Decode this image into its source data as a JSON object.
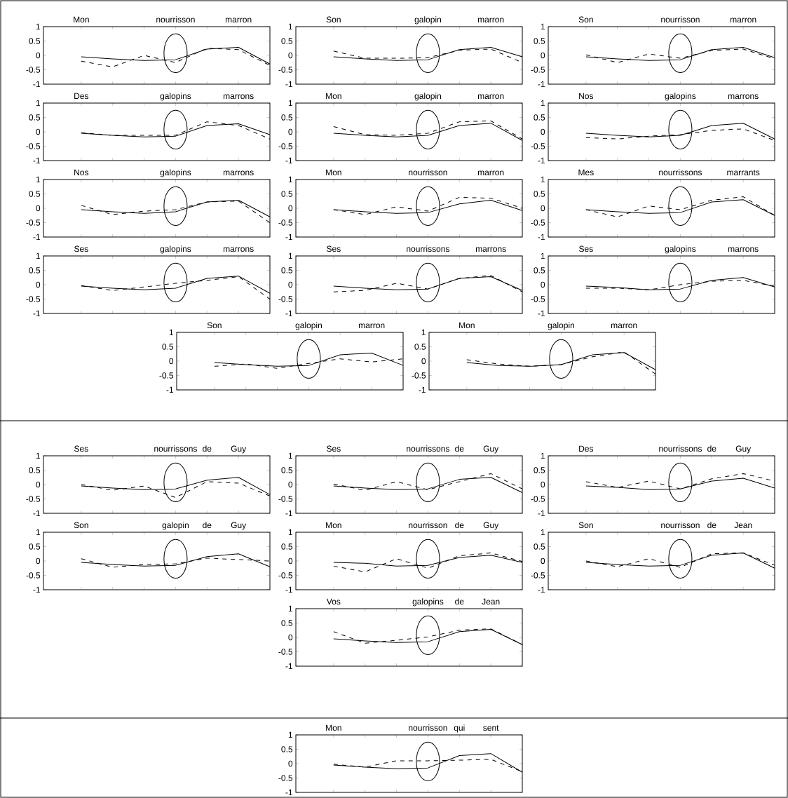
{
  "chart_data": [
    {
      "type": "line",
      "categories": [
        "Mon",
        null,
        null,
        "nourrisson",
        null,
        "marron",
        null
      ],
      "ylim": [
        -1,
        1
      ],
      "yticks": [
        -1,
        -0.5,
        0,
        0.5,
        1
      ],
      "series": [
        {
          "color": "#000000",
          "line_style": "solid",
          "values": [
            -0.05,
            -0.12,
            -0.18,
            -0.15,
            0.22,
            0.28,
            -0.3
          ]
        },
        {
          "color": "#000000",
          "line_style": "dashed",
          "values": [
            -0.2,
            -0.4,
            0,
            -0.25,
            0.25,
            0.2,
            -0.35
          ]
        }
      ]
    },
    {
      "type": "line",
      "categories": [
        "Son",
        null,
        null,
        "galopin",
        null,
        "marron",
        null
      ],
      "ylim": [
        -1,
        1
      ],
      "yticks": [
        -1,
        -0.5,
        0,
        0.5,
        1
      ],
      "series": [
        {
          "color": "#000000",
          "line_style": "solid",
          "values": [
            -0.05,
            -0.12,
            -0.18,
            -0.15,
            0.2,
            0.28,
            -0.05
          ]
        },
        {
          "color": "#000000",
          "line_style": "dashed",
          "values": [
            0.15,
            -0.1,
            -0.1,
            -0.08,
            0.18,
            0.22,
            -0.25
          ]
        }
      ]
    },
    {
      "type": "line",
      "categories": [
        "Son",
        null,
        null,
        "nourrisson",
        null,
        "marron",
        null
      ],
      "ylim": [
        -1,
        1
      ],
      "yticks": [
        -1,
        -0.5,
        0,
        0.5,
        1
      ],
      "series": [
        {
          "color": "#000000",
          "line_style": "solid",
          "values": [
            -0.05,
            -0.12,
            -0.18,
            -0.15,
            0.2,
            0.28,
            -0.08
          ]
        },
        {
          "color": "#000000",
          "line_style": "dashed",
          "values": [
            0.02,
            -0.25,
            0.05,
            -0.1,
            0.17,
            0.22,
            -0.12
          ]
        }
      ]
    },
    {
      "type": "line",
      "categories": [
        "Des",
        null,
        null,
        "galopins",
        null,
        "marrons",
        null
      ],
      "ylim": [
        -1,
        1
      ],
      "yticks": [
        -1,
        -0.5,
        0,
        0.5,
        1
      ],
      "series": [
        {
          "color": "#000000",
          "line_style": "solid",
          "values": [
            -0.05,
            -0.12,
            -0.18,
            -0.15,
            0.22,
            0.28,
            -0.1
          ]
        },
        {
          "color": "#000000",
          "line_style": "dashed",
          "values": [
            -0.03,
            -0.12,
            -0.12,
            -0.12,
            0.35,
            0.22,
            -0.25
          ]
        }
      ]
    },
    {
      "type": "line",
      "categories": [
        "Mon",
        null,
        null,
        "galopin",
        null,
        "marron",
        null
      ],
      "ylim": [
        -1,
        1
      ],
      "yticks": [
        -1,
        -0.5,
        0,
        0.5,
        1
      ],
      "series": [
        {
          "color": "#000000",
          "line_style": "solid",
          "values": [
            -0.05,
            -0.12,
            -0.18,
            -0.12,
            0.22,
            0.3,
            -0.3
          ]
        },
        {
          "color": "#000000",
          "line_style": "dashed",
          "values": [
            0.18,
            -0.1,
            -0.12,
            -0.05,
            0.35,
            0.38,
            -0.25
          ]
        }
      ]
    },
    {
      "type": "line",
      "categories": [
        "Nos",
        null,
        null,
        "galopins",
        null,
        "marrons",
        null
      ],
      "ylim": [
        -1,
        1
      ],
      "yticks": [
        -1,
        -0.5,
        0,
        0.5,
        1
      ],
      "series": [
        {
          "color": "#000000",
          "line_style": "solid",
          "values": [
            -0.05,
            -0.12,
            -0.18,
            -0.12,
            0.22,
            0.3,
            -0.25
          ]
        },
        {
          "color": "#000000",
          "line_style": "dashed",
          "values": [
            -0.2,
            -0.25,
            -0.15,
            -0.1,
            0.05,
            0.1,
            -0.3
          ]
        }
      ]
    },
    {
      "type": "line",
      "categories": [
        "Nos",
        null,
        null,
        "galopins",
        null,
        "marrons",
        null
      ],
      "ylim": [
        -1,
        1
      ],
      "yticks": [
        -1,
        -0.5,
        0,
        0.5,
        1
      ],
      "series": [
        {
          "color": "#000000",
          "line_style": "solid",
          "values": [
            -0.05,
            -0.12,
            -0.18,
            -0.12,
            0.22,
            0.28,
            -0.3
          ]
        },
        {
          "color": "#000000",
          "line_style": "dashed",
          "values": [
            0.1,
            -0.22,
            -0.1,
            -0.05,
            0.22,
            0.25,
            -0.5
          ]
        }
      ]
    },
    {
      "type": "line",
      "categories": [
        "Mon",
        null,
        null,
        "nourrisson",
        null,
        "marron",
        null
      ],
      "ylim": [
        -1,
        1
      ],
      "yticks": [
        -1,
        -0.5,
        0,
        0.5,
        1
      ],
      "series": [
        {
          "color": "#000000",
          "line_style": "solid",
          "values": [
            -0.05,
            -0.12,
            -0.18,
            -0.15,
            0.15,
            0.28,
            -0.08
          ]
        },
        {
          "color": "#000000",
          "line_style": "dashed",
          "values": [
            -0.05,
            -0.22,
            0.05,
            -0.1,
            0.38,
            0.35,
            0
          ]
        }
      ]
    },
    {
      "type": "line",
      "categories": [
        "Mes",
        null,
        null,
        "nourrissons",
        null,
        "marrants",
        null
      ],
      "ylim": [
        -1,
        1
      ],
      "yticks": [
        -1,
        -0.5,
        0,
        0.5,
        1
      ],
      "series": [
        {
          "color": "#000000",
          "line_style": "solid",
          "values": [
            -0.05,
            -0.12,
            -0.18,
            -0.15,
            0.22,
            0.3,
            -0.25
          ]
        },
        {
          "color": "#000000",
          "line_style": "dashed",
          "values": [
            -0.05,
            -0.3,
            0.08,
            -0.05,
            0.28,
            0.4,
            -0.25
          ]
        }
      ]
    },
    {
      "type": "line",
      "categories": [
        "Ses",
        null,
        null,
        "galopins",
        null,
        "marrons",
        null
      ],
      "ylim": [
        -1,
        1
      ],
      "yticks": [
        -1,
        -0.5,
        0,
        0.5,
        1
      ],
      "series": [
        {
          "color": "#000000",
          "line_style": "solid",
          "values": [
            -0.05,
            -0.12,
            -0.18,
            -0.12,
            0.22,
            0.3,
            -0.3
          ]
        },
        {
          "color": "#000000",
          "line_style": "dashed",
          "values": [
            -0.03,
            -0.2,
            -0.08,
            0.05,
            0.15,
            0.28,
            -0.5
          ]
        }
      ]
    },
    {
      "type": "line",
      "categories": [
        "Ses",
        null,
        null,
        "nourrissons",
        null,
        "marrons",
        null
      ],
      "ylim": [
        -1,
        1
      ],
      "yticks": [
        -1,
        -0.5,
        0,
        0.5,
        1
      ],
      "series": [
        {
          "color": "#000000",
          "line_style": "solid",
          "values": [
            -0.05,
            -0.12,
            -0.18,
            -0.15,
            0.22,
            0.28,
            -0.2
          ]
        },
        {
          "color": "#000000",
          "line_style": "dashed",
          "values": [
            -0.25,
            -0.2,
            0.05,
            -0.15,
            0.22,
            0.32,
            -0.25
          ]
        }
      ]
    },
    {
      "type": "line",
      "categories": [
        "Ses",
        null,
        null,
        "galopins",
        null,
        "marrons",
        null
      ],
      "ylim": [
        -1,
        1
      ],
      "yticks": [
        -1,
        -0.5,
        0,
        0.5,
        1
      ],
      "series": [
        {
          "color": "#000000",
          "line_style": "solid",
          "values": [
            -0.05,
            -0.1,
            -0.18,
            -0.15,
            0.15,
            0.25,
            -0.08
          ]
        },
        {
          "color": "#000000",
          "line_style": "dashed",
          "values": [
            -0.12,
            -0.12,
            -0.18,
            0,
            0.12,
            0.15,
            -0.05
          ]
        }
      ]
    },
    {
      "type": "line",
      "categories": [
        "Son",
        null,
        null,
        "galopin",
        null,
        "marron",
        null
      ],
      "ylim": [
        -1,
        1
      ],
      "yticks": [
        -1,
        -0.5,
        0,
        0.5,
        1
      ],
      "series": [
        {
          "color": "#000000",
          "line_style": "solid",
          "values": [
            -0.05,
            -0.12,
            -0.18,
            -0.15,
            0.22,
            0.28,
            -0.15
          ]
        },
        {
          "color": "#000000",
          "line_style": "dashed",
          "values": [
            -0.18,
            -0.1,
            -0.25,
            -0.08,
            0.08,
            -0.03,
            0.08
          ]
        }
      ]
    },
    {
      "type": "line",
      "categories": [
        "Mon",
        null,
        null,
        "galopin",
        null,
        "marron",
        null
      ],
      "ylim": [
        -1,
        1
      ],
      "yticks": [
        -1,
        -0.5,
        0,
        0.5,
        1
      ],
      "series": [
        {
          "color": "#000000",
          "line_style": "solid",
          "values": [
            -0.05,
            -0.15,
            -0.18,
            -0.12,
            0.22,
            0.3,
            -0.3
          ]
        },
        {
          "color": "#000000",
          "line_style": "dashed",
          "values": [
            0.05,
            -0.1,
            -0.18,
            -0.12,
            0.15,
            0.32,
            -0.45
          ]
        }
      ]
    },
    {
      "type": "line",
      "categories": [
        "Ses",
        null,
        null,
        "nourrissons",
        "de",
        "Guy",
        null
      ],
      "ylim": [
        -1,
        1
      ],
      "yticks": [
        -1,
        -0.5,
        0,
        0.5,
        1
      ],
      "series": [
        {
          "color": "#000000",
          "line_style": "solid",
          "values": [
            -0.05,
            -0.12,
            -0.18,
            -0.15,
            0.15,
            0.25,
            -0.35
          ]
        },
        {
          "color": "#000000",
          "line_style": "dashed",
          "values": [
            0,
            -0.2,
            -0.05,
            -0.45,
            0.1,
            0.05,
            -0.4
          ]
        }
      ]
    },
    {
      "type": "line",
      "categories": [
        "Ses",
        null,
        null,
        "nourrissons",
        "de",
        "Guy",
        null
      ],
      "ylim": [
        -1,
        1
      ],
      "yticks": [
        -1,
        -0.5,
        0,
        0.5,
        1
      ],
      "series": [
        {
          "color": "#000000",
          "line_style": "solid",
          "values": [
            -0.05,
            -0.12,
            -0.18,
            -0.15,
            0.18,
            0.25,
            -0.28
          ]
        },
        {
          "color": "#000000",
          "line_style": "dashed",
          "values": [
            0.02,
            -0.2,
            0.1,
            -0.18,
            0.1,
            0.38,
            -0.15
          ]
        }
      ]
    },
    {
      "type": "line",
      "categories": [
        "Des",
        null,
        null,
        "nourrissons",
        "de",
        "Guy",
        null
      ],
      "ylim": [
        -1,
        1
      ],
      "yticks": [
        -1,
        -0.5,
        0,
        0.5,
        1
      ],
      "series": [
        {
          "color": "#000000",
          "line_style": "solid",
          "values": [
            -0.05,
            -0.1,
            -0.18,
            -0.15,
            0.12,
            0.22,
            -0.12
          ]
        },
        {
          "color": "#000000",
          "line_style": "dashed",
          "values": [
            0.1,
            -0.1,
            0.12,
            -0.15,
            0.2,
            0.38,
            0.12
          ]
        }
      ]
    },
    {
      "type": "line",
      "categories": [
        "Son",
        null,
        null,
        "galopin",
        "de",
        "Guy",
        null
      ],
      "ylim": [
        -1,
        1
      ],
      "yticks": [
        -1,
        -0.5,
        0,
        0.5,
        1
      ],
      "series": [
        {
          "color": "#000000",
          "line_style": "solid",
          "values": [
            -0.05,
            -0.12,
            -0.18,
            -0.15,
            0.15,
            0.25,
            -0.2
          ]
        },
        {
          "color": "#000000",
          "line_style": "dashed",
          "values": [
            0.08,
            -0.22,
            -0.12,
            -0.1,
            0.1,
            0.05,
            0
          ]
        }
      ]
    },
    {
      "type": "line",
      "categories": [
        "Mon",
        null,
        null,
        "nourrisson",
        "de",
        "Guy",
        null
      ],
      "ylim": [
        -1,
        1
      ],
      "yticks": [
        -1,
        -0.5,
        0,
        0.5,
        1
      ],
      "series": [
        {
          "color": "#000000",
          "line_style": "solid",
          "values": [
            -0.05,
            -0.08,
            -0.18,
            -0.15,
            0.12,
            0.2,
            -0.05
          ]
        },
        {
          "color": "#000000",
          "line_style": "dashed",
          "values": [
            -0.18,
            -0.38,
            0.08,
            -0.25,
            0.18,
            0.28,
            -0.02
          ]
        }
      ]
    },
    {
      "type": "line",
      "categories": [
        "Son",
        null,
        null,
        "nourrisson",
        "de",
        "Jean",
        null
      ],
      "ylim": [
        -1,
        1
      ],
      "yticks": [
        -1,
        -0.5,
        0,
        0.5,
        1
      ],
      "series": [
        {
          "color": "#000000",
          "line_style": "solid",
          "values": [
            -0.05,
            -0.12,
            -0.18,
            -0.15,
            0.2,
            0.28,
            -0.25
          ]
        },
        {
          "color": "#000000",
          "line_style": "dashed",
          "values": [
            0,
            -0.2,
            0.08,
            -0.22,
            0.25,
            0.28,
            -0.15
          ]
        }
      ]
    },
    {
      "type": "line",
      "categories": [
        "Vos",
        null,
        null,
        "galopins",
        "de",
        "Jean",
        null
      ],
      "ylim": [
        -1,
        1
      ],
      "yticks": [
        -1,
        -0.5,
        0,
        0.5,
        1
      ],
      "series": [
        {
          "color": "#000000",
          "line_style": "solid",
          "values": [
            -0.05,
            -0.12,
            -0.18,
            -0.15,
            0.2,
            0.28,
            -0.25
          ]
        },
        {
          "color": "#000000",
          "line_style": "dashed",
          "values": [
            0.2,
            -0.2,
            -0.1,
            0.02,
            0.25,
            0.3,
            -0.25
          ]
        }
      ]
    },
    {
      "type": "line",
      "categories": [
        "Mon",
        null,
        null,
        "nourrisson",
        "qui",
        "sent",
        null
      ],
      "ylim": [
        -1,
        1
      ],
      "yticks": [
        -1,
        -0.5,
        0,
        0.5,
        1
      ],
      "series": [
        {
          "color": "#000000",
          "line_style": "solid",
          "values": [
            -0.05,
            -0.12,
            -0.18,
            -0.15,
            0.28,
            0.35,
            -0.3
          ]
        },
        {
          "color": "#000000",
          "line_style": "dashed",
          "values": [
            -0.02,
            -0.12,
            0.1,
            0.1,
            0.12,
            0.15,
            -0.28
          ]
        }
      ]
    }
  ]
}
